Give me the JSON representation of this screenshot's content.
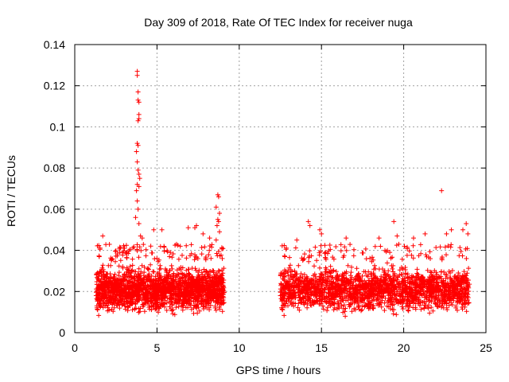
{
  "chart_data": {
    "type": "scatter",
    "title": "Day 309 of 2018, Rate Of TEC Index for receiver nuga",
    "xlabel": "GPS time / hours",
    "ylabel": "ROTI / TECUs",
    "xlim": [
      0,
      25
    ],
    "ylim": [
      0,
      0.14
    ],
    "xticks": [
      "0",
      "5",
      "10",
      "15",
      "20",
      "25"
    ],
    "yticks": [
      "0",
      "0.02",
      "0.04",
      "0.06",
      "0.08",
      "0.1",
      "0.12",
      "0.14"
    ],
    "grid": true,
    "marker": "+",
    "color": "#ff0000",
    "segments": [
      {
        "x_start": 1.3,
        "x_end": 9.1,
        "typical_range": [
          0.007,
          0.035
        ],
        "median": 0.018
      },
      {
        "x_start": 12.5,
        "x_end": 24.0,
        "typical_range": [
          0.007,
          0.035
        ],
        "median": 0.018
      }
    ],
    "outliers": [
      {
        "x": 3.8,
        "y": 0.127
      },
      {
        "x": 3.8,
        "y": 0.125
      },
      {
        "x": 3.85,
        "y": 0.117
      },
      {
        "x": 3.85,
        "y": 0.113
      },
      {
        "x": 3.9,
        "y": 0.112
      },
      {
        "x": 3.9,
        "y": 0.106
      },
      {
        "x": 3.85,
        "y": 0.103
      },
      {
        "x": 3.9,
        "y": 0.104
      },
      {
        "x": 3.8,
        "y": 0.092
      },
      {
        "x": 3.85,
        "y": 0.091
      },
      {
        "x": 3.75,
        "y": 0.088
      },
      {
        "x": 3.8,
        "y": 0.083
      },
      {
        "x": 3.85,
        "y": 0.079
      },
      {
        "x": 3.9,
        "y": 0.077
      },
      {
        "x": 3.95,
        "y": 0.075
      },
      {
        "x": 3.8,
        "y": 0.072
      },
      {
        "x": 3.9,
        "y": 0.071
      },
      {
        "x": 3.75,
        "y": 0.069
      },
      {
        "x": 3.8,
        "y": 0.064
      },
      {
        "x": 3.85,
        "y": 0.06
      },
      {
        "x": 3.7,
        "y": 0.056
      },
      {
        "x": 3.9,
        "y": 0.053
      },
      {
        "x": 4.0,
        "y": 0.047
      },
      {
        "x": 4.1,
        "y": 0.046
      },
      {
        "x": 8.7,
        "y": 0.067
      },
      {
        "x": 8.75,
        "y": 0.066
      },
      {
        "x": 8.6,
        "y": 0.061
      },
      {
        "x": 8.8,
        "y": 0.058
      },
      {
        "x": 8.7,
        "y": 0.055
      },
      {
        "x": 8.75,
        "y": 0.054
      },
      {
        "x": 8.65,
        "y": 0.052
      },
      {
        "x": 8.8,
        "y": 0.049
      },
      {
        "x": 8.6,
        "y": 0.045
      },
      {
        "x": 22.3,
        "y": 0.069
      },
      {
        "x": 19.4,
        "y": 0.054
      },
      {
        "x": 14.2,
        "y": 0.054
      },
      {
        "x": 14.3,
        "y": 0.052
      },
      {
        "x": 23.8,
        "y": 0.053
      },
      {
        "x": 4.8,
        "y": 0.05
      },
      {
        "x": 5.3,
        "y": 0.05
      },
      {
        "x": 6.9,
        "y": 0.051
      },
      {
        "x": 7.3,
        "y": 0.051
      },
      {
        "x": 7.4,
        "y": 0.052
      },
      {
        "x": 22.9,
        "y": 0.05
      },
      {
        "x": 14.9,
        "y": 0.05
      },
      {
        "x": 15.0,
        "y": 0.048
      },
      {
        "x": 16.5,
        "y": 0.046
      },
      {
        "x": 19.6,
        "y": 0.047
      },
      {
        "x": 21.3,
        "y": 0.048
      },
      {
        "x": 22.6,
        "y": 0.048
      },
      {
        "x": 23.6,
        "y": 0.05
      },
      {
        "x": 1.7,
        "y": 0.047
      },
      {
        "x": 7.8,
        "y": 0.048
      },
      {
        "x": 8.2,
        "y": 0.046
      },
      {
        "x": 23.9,
        "y": 0.048
      },
      {
        "x": 18.5,
        "y": 0.046
      },
      {
        "x": 20.6,
        "y": 0.046
      },
      {
        "x": 13.5,
        "y": 0.045
      }
    ]
  }
}
